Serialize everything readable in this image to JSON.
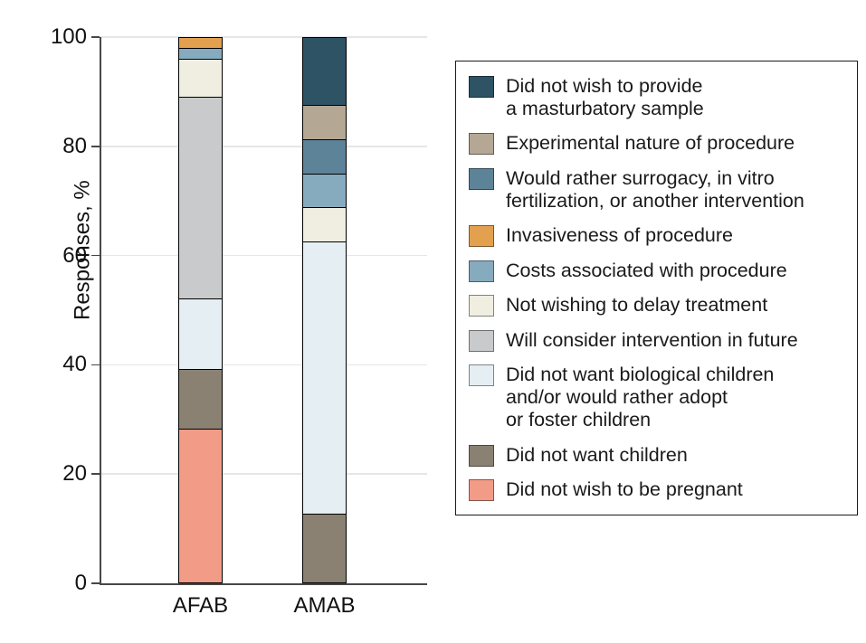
{
  "y_axis": {
    "label": "Responses, %",
    "ticks": [
      0,
      20,
      40,
      60,
      80,
      100
    ]
  },
  "chart_data": {
    "type": "bar",
    "stacked": true,
    "title": "",
    "xlabel": "",
    "ylabel": "Responses, %",
    "ylim": [
      0,
      100
    ],
    "grid": true,
    "gridline_values": [
      20,
      40,
      60,
      80,
      100
    ],
    "legend_position": "right",
    "categories": [
      "AFAB",
      "AMAB"
    ],
    "series": [
      {
        "name": "Did not wish to provide\na masturbatory sample",
        "color": "#2E5365",
        "values": [
          0,
          12.5
        ]
      },
      {
        "name": "Experimental nature of procedure",
        "color": "#B4A794",
        "values": [
          0,
          6.25
        ]
      },
      {
        "name": "Would rather surrogacy, in vitro\nfertilization, or another intervention",
        "color": "#5D8399",
        "values": [
          0,
          6.25
        ]
      },
      {
        "name": "Invasiveness of procedure",
        "color": "#E3A04E",
        "values": [
          2,
          0
        ]
      },
      {
        "name": "Costs associated with procedure",
        "color": "#87ABBE",
        "values": [
          2,
          6.25
        ]
      },
      {
        "name": "Not wishing to delay treatment",
        "color": "#EFEEE1",
        "values": [
          7,
          6.25
        ]
      },
      {
        "name": "Will consider intervention in future",
        "color": "#C8CACC",
        "values": [
          37,
          0
        ]
      },
      {
        "name": "Did not want biological children\nand/or would rather adopt\nor foster children",
        "color": "#E5EEF3",
        "values": [
          13,
          50
        ]
      },
      {
        "name": "Did not want children",
        "color": "#8A8173",
        "values": [
          11,
          12.5
        ]
      },
      {
        "name": "Did not wish to be pregnant",
        "color": "#F29C87",
        "values": [
          28,
          0
        ]
      }
    ]
  },
  "layout_colors": {
    "gridline": "#e5e6e7",
    "axis": "#474747",
    "segment_outline": "#000000"
  }
}
